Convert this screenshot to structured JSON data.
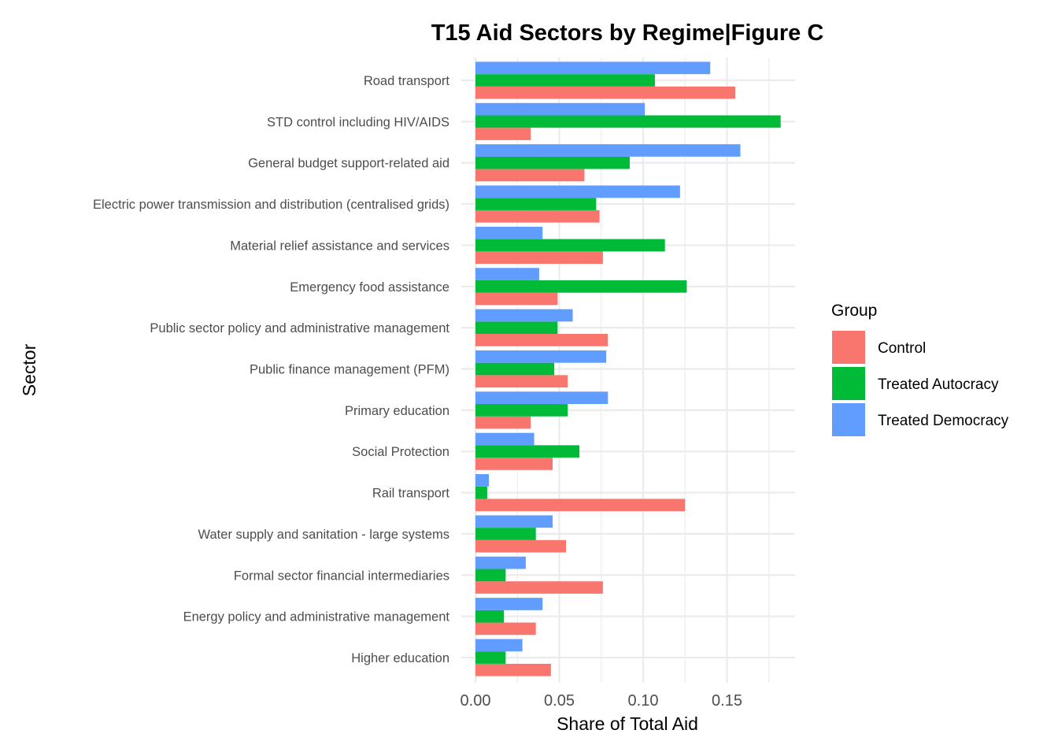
{
  "chart_data": {
    "type": "bar",
    "orientation": "horizontal",
    "title": "T15 Aid Sectors by Regime|Figure C",
    "xlabel": "Share of Total Aid",
    "ylabel": "Sector",
    "xlim": [
      0,
      0.19
    ],
    "x_ticks": [
      "0.00",
      "0.05",
      "0.10",
      "0.15"
    ],
    "x_tick_values": [
      0,
      0.05,
      0.1,
      0.15
    ],
    "grid": true,
    "legend": {
      "title": "Group",
      "placement": "right"
    },
    "categories": [
      "Road transport",
      "STD control including HIV/AIDS",
      "General budget support-related aid",
      "Electric power transmission and distribution (centralised grids)",
      "Material relief assistance and services",
      "Emergency food assistance",
      "Public sector policy and administrative management",
      "Public finance management (PFM)",
      "Primary education",
      "Social Protection",
      "Rail transport",
      "Water supply and sanitation - large systems",
      "Formal sector financial intermediaries",
      "Energy policy and administrative management",
      "Higher education"
    ],
    "series": [
      {
        "name": "Control",
        "color": "#F8766D",
        "values": [
          0.155,
          0.033,
          0.065,
          0.074,
          0.076,
          0.049,
          0.079,
          0.055,
          0.033,
          0.046,
          0.125,
          0.054,
          0.076,
          0.036,
          0.045
        ]
      },
      {
        "name": "Treated Autocracy",
        "color": "#00BA38",
        "values": [
          0.107,
          0.182,
          0.092,
          0.072,
          0.113,
          0.126,
          0.049,
          0.047,
          0.055,
          0.062,
          0.007,
          0.036,
          0.018,
          0.017,
          0.018
        ]
      },
      {
        "name": "Treated Democracy",
        "color": "#619CFF",
        "values": [
          0.14,
          0.101,
          0.158,
          0.122,
          0.04,
          0.038,
          0.058,
          0.078,
          0.079,
          0.035,
          0.008,
          0.046,
          0.03,
          0.04,
          0.028
        ]
      }
    ]
  }
}
